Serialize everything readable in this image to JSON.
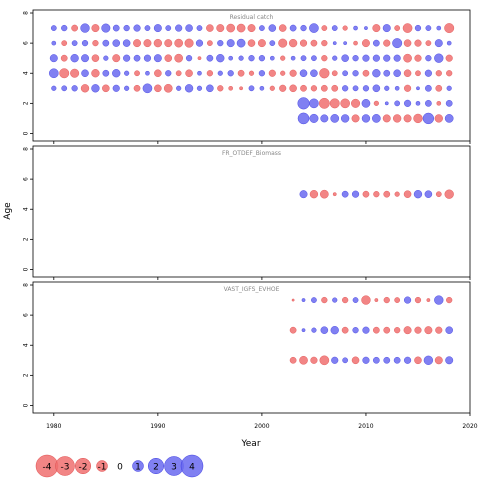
{
  "chart_data": {
    "type": "scatter",
    "subtype": "bubble-residuals",
    "xlabel": "Year",
    "ylabel": "Age",
    "xlim": [
      1978,
      2020
    ],
    "ylim": [
      -0.5,
      8.2
    ],
    "xticks": [
      1980,
      1990,
      2000,
      2010,
      2020
    ],
    "yticks": [
      0,
      2,
      4,
      6,
      8
    ],
    "colors": {
      "positive": "#6a6af0",
      "negative": "#f07070",
      "positive_edge": "#3a3ae0",
      "negative_edge": "#e04a4a"
    },
    "panels": [
      {
        "title": "Residual catch",
        "ages": [
          1,
          2,
          3,
          4,
          5,
          6,
          7
        ],
        "age_rows": [
          0,
          1,
          2,
          3,
          4,
          5,
          6
        ],
        "x": [
          1980,
          1981,
          1982,
          1983,
          1984,
          1985,
          1986,
          1987,
          1988,
          1989,
          1990,
          1991,
          1992,
          1993,
          1994,
          1995,
          1996,
          1997,
          1998,
          1999,
          2000,
          2001,
          2002,
          2003,
          2004,
          2005,
          2006,
          2007,
          2008,
          2009,
          2010,
          2011,
          2012,
          2013,
          2014,
          2015,
          2016,
          2017,
          2018
        ],
        "rows": [
          [
            0,
            0,
            0,
            0,
            0,
            0,
            0,
            0,
            0,
            0,
            0,
            0,
            0,
            0,
            0,
            0,
            0,
            0,
            0,
            0,
            0,
            0,
            0,
            0,
            2.2,
            1.3,
            1,
            1.2,
            1.1,
            -1,
            1.1,
            1.2,
            -1,
            -1.1,
            -1,
            -1.4,
            2.1,
            -1.1,
            1.2
          ],
          [
            0,
            0,
            0,
            0,
            0,
            0,
            0,
            0,
            0,
            0,
            0,
            0,
            0,
            0,
            0,
            0,
            0,
            0,
            0,
            0,
            0,
            0,
            0,
            0,
            2.4,
            1.5,
            -1.9,
            -1.6,
            -1.5,
            -1.3,
            1.2,
            -0.4,
            0.2,
            0.5,
            0.8,
            0.3,
            0.7,
            -0.3,
            0.7
          ],
          [
            0.4,
            0.5,
            0.6,
            -1.1,
            1.1,
            -0.9,
            0.8,
            0.4,
            -0.7,
            1.5,
            -0.9,
            -1.2,
            0.4,
            1.1,
            0.4,
            0.9,
            -0.6,
            -0.3,
            -0.2,
            0.5,
            0.3,
            -0.4,
            -0.8,
            -0.9,
            -0.7,
            -0.6,
            -0.7,
            -0.7,
            0.6,
            0.5,
            0.6,
            0.9,
            0.4,
            0.3,
            -0.8,
            0.2,
            0.7,
            -0.7,
            0.4
          ],
          [
            1.5,
            -1.6,
            -1.3,
            0.9,
            -1.1,
            0.7,
            1.1,
            0.4,
            -0.5,
            0.3,
            -0.9,
            0.6,
            -0.5,
            -0.9,
            0.3,
            -0.6,
            0.4,
            0.6,
            -0.7,
            -0.4,
            0.6,
            -0.8,
            -0.4,
            -0.8,
            0.9,
            0.9,
            -1.7,
            -0.5,
            0.5,
            0.6,
            -0.7,
            1.1,
            0.7,
            0.9,
            -0.9,
            -0.5,
            0.8,
            -0.6,
            -0.6
          ],
          [
            1,
            -0.7,
            1.1,
            1,
            -0.9,
            0.4,
            -1,
            0.8,
            0.7,
            0.8,
            1,
            -0.9,
            -1.2,
            0.6,
            -0.2,
            0.7,
            1.1,
            0.3,
            0.4,
            0.6,
            0.6,
            0.3,
            -0.4,
            0.3,
            0.5,
            0.5,
            -0.6,
            0.4,
            0.9,
            0.6,
            0.8,
            0.8,
            0.8,
            0.8,
            -1.2,
            -0.8,
            0.6,
            1.4,
            -0.8
          ],
          [
            0.3,
            -0.5,
            0.5,
            0.6,
            -0.6,
            0.7,
            0.9,
            0.9,
            -1,
            -1,
            -1.1,
            -1,
            -1.2,
            -1.3,
            0.8,
            -0.5,
            0.6,
            1,
            1.2,
            -0.9,
            -1,
            0.5,
            -1.3,
            -1.1,
            -0.8,
            -0.7,
            -0.6,
            0.2,
            0.2,
            -0.3,
            -1,
            0.7,
            -0.8,
            1.6,
            -0.9,
            -0.8,
            -0.5,
            1,
            0.3
          ],
          [
            0.5,
            0.6,
            -0.7,
            1.4,
            -1,
            1.3,
            0.7,
            0.6,
            0.8,
            0.5,
            1,
            0.5,
            0.8,
            0.9,
            0.5,
            -0.9,
            -1,
            -1.2,
            -1.2,
            -1,
            0.5,
            0.9,
            -0.9,
            0.7,
            0.6,
            1.5,
            -0.5,
            0.5,
            -0.4,
            0.3,
            0.2,
            -1,
            1,
            -0.5,
            -1.5,
            0.6,
            0.5,
            0.3,
            -1.6
          ]
        ]
      },
      {
        "title": "FR_OTDEF_Biomass",
        "ages": [
          1
        ],
        "age_rows": [
          4
        ],
        "x": [
          2004,
          2005,
          2006,
          2007,
          2008,
          2009,
          2010,
          2011,
          2012,
          2013,
          2014,
          2015,
          2016,
          2017,
          2018
        ],
        "rows": [
          [
            1.0,
            -1.1,
            -1.2,
            -0.2,
            0.7,
            0.8,
            -0.7,
            -0.6,
            -0.7,
            -0.4,
            -0.9,
            1.1,
            0.9,
            -0.5,
            -1.4
          ]
        ]
      },
      {
        "title": "VAST_IGFS_EVHOE",
        "ages": [
          1,
          2,
          3
        ],
        "age_rows": [
          2,
          4,
          6
        ],
        "x": [
          2003,
          2004,
          2005,
          2006,
          2007,
          2008,
          2009,
          2010,
          2011,
          2012,
          2013,
          2014,
          2015,
          2016,
          2017,
          2018
        ],
        "rows": [
          [
            -0.7,
            -1.2,
            -0.8,
            -1.5,
            0.8,
            0.5,
            -0.9,
            0.8,
            0.7,
            0.7,
            0.7,
            0.8,
            -0.9,
            1.4,
            -1,
            1
          ],
          [
            -0.7,
            0.2,
            0.4,
            0.9,
            1.1,
            -0.7,
            0.6,
            0.8,
            -0.7,
            -0.7,
            -0.6,
            -1,
            -0.8,
            -1,
            -0.8,
            0.9
          ],
          [
            -0.1,
            0.2,
            0.5,
            -0.6,
            0.4,
            -0.6,
            0.5,
            -1.4,
            -0.2,
            -0.6,
            -0.5,
            0.8,
            -0.6,
            -0.2,
            1.4,
            -0.6
          ]
        ]
      }
    ],
    "legend": {
      "placement": "bottom-left",
      "items": [
        {
          "label": "-4",
          "value": -4
        },
        {
          "label": "-3",
          "value": -3
        },
        {
          "label": "-2",
          "value": -2
        },
        {
          "label": "-1",
          "value": -1
        },
        {
          "label": "0",
          "value": 0
        },
        {
          "label": "1",
          "value": 1
        },
        {
          "label": "2",
          "value": 2
        },
        {
          "label": "3",
          "value": 3
        },
        {
          "label": "4",
          "value": 4
        }
      ]
    }
  }
}
